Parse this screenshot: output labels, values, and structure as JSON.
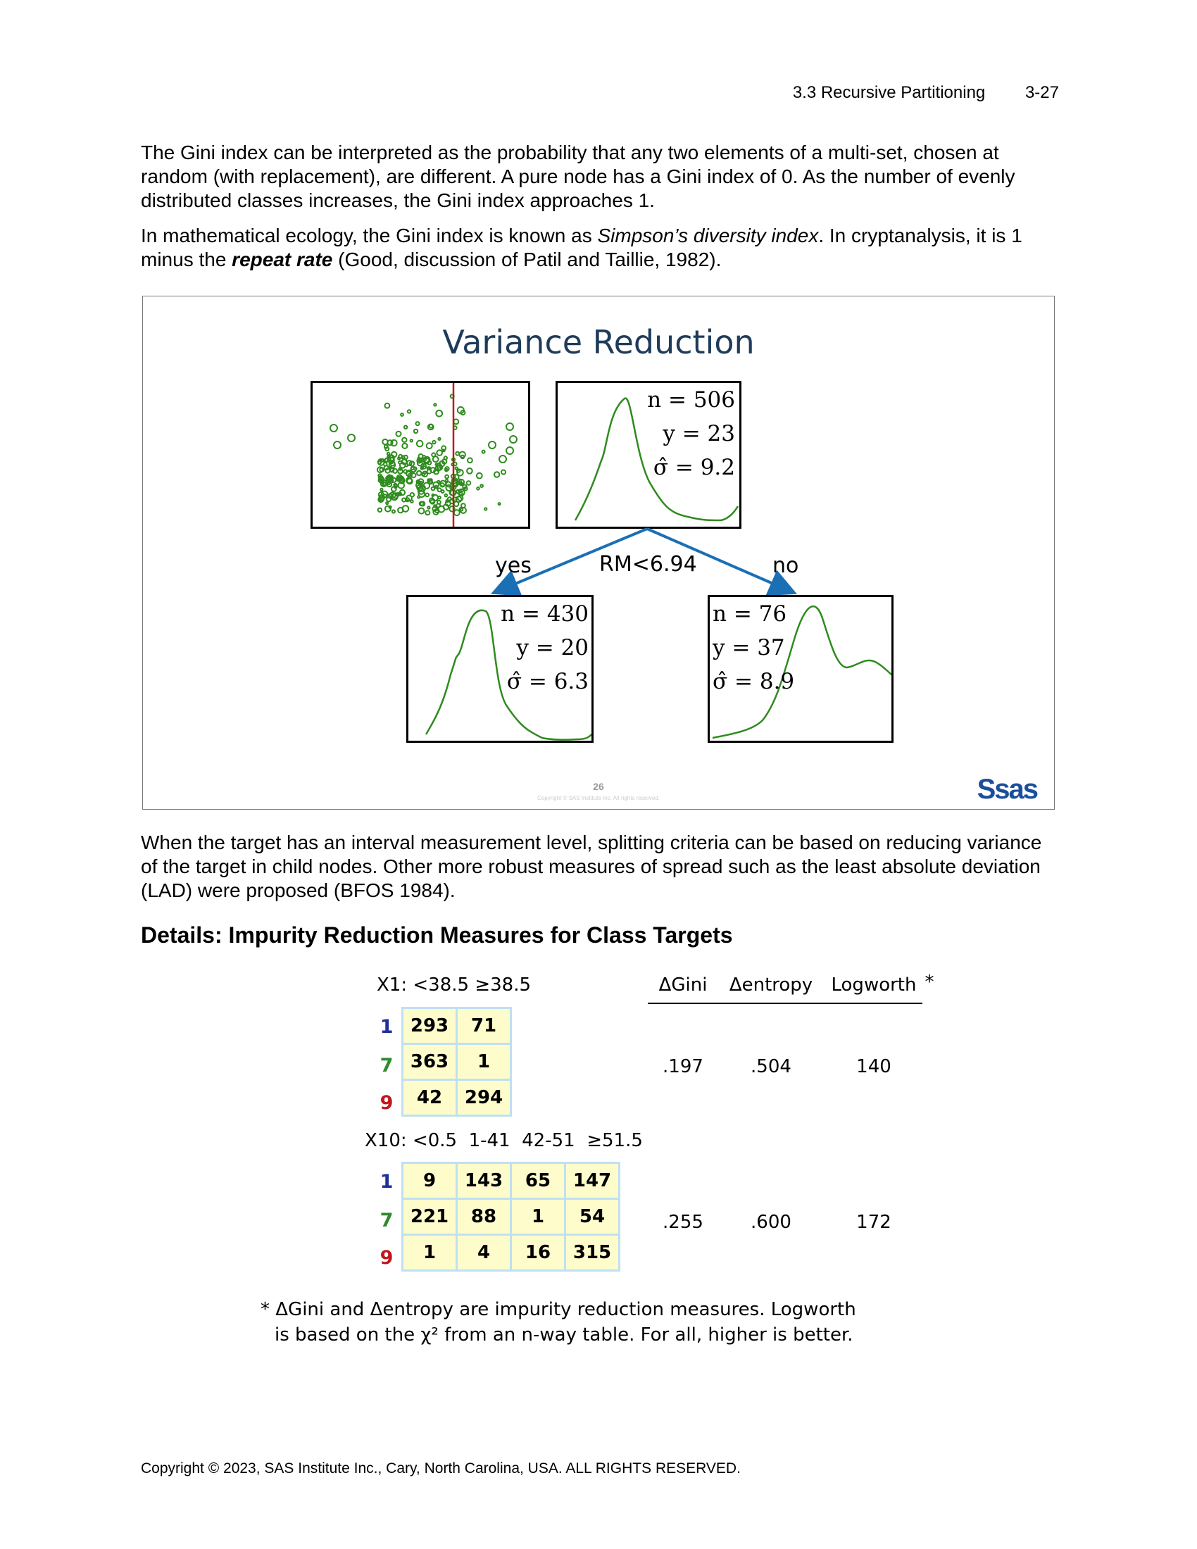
{
  "header": {
    "section": "3.3 Recursive Partitioning",
    "page": "3-27"
  },
  "para1": "The Gini index can be interpreted as the probability that any two elements of a multi-set, chosen at random (with replacement), are different. A pure node has a Gini index of 0. As the number of evenly distributed classes increases, the Gini index approaches 1.",
  "para2": {
    "a": "In mathematical ecology, the Gini index is known as ",
    "b": "Simpson’s diversity index",
    "c": ". In cryptanalysis, it is 1 minus the ",
    "d": "repeat rate",
    "e": " (Good, discussion of Patil and Taillie, 1982)."
  },
  "slide": {
    "title": "Variance Reduction",
    "root": {
      "n": "n = 506",
      "ybar": "y = 23",
      "sigma": "σ̂ = 9.2"
    },
    "left": {
      "n": "n = 430",
      "ybar": "y = 20",
      "sigma": "σ̂ = 6.3"
    },
    "right": {
      "n": "n = 76",
      "ybar": "y = 37",
      "sigma": "σ̂ = 8.9"
    },
    "yes": "yes",
    "split": "RM<6.94",
    "no": "no",
    "number": "26",
    "copyright": "Copyright © SAS Institute Inc. All rights reserved.",
    "logo": "Ssas"
  },
  "para3": "When the target has an interval measurement level, splitting criteria can be based on reducing variance of the target in child nodes. Other more robust measures of spread such as the least absolute deviation (LAD) were proposed (BFOS 1984).",
  "heading": "Details: Impurity Reduction Measures for Class Targets",
  "table": {
    "headers": {
      "gini": "ΔGini",
      "entropy": "Δentropy",
      "logworth": "Logworth",
      "star": "*"
    },
    "row_colors": {
      "1": "#1f2f9a",
      "7": "#2e8b2e",
      "9": "#c0161c"
    },
    "x1": {
      "label": "X1: <38.5 ≥38.5",
      "rows": [
        {
          "class": "1",
          "cells": [
            "293",
            "71"
          ]
        },
        {
          "class": "7",
          "cells": [
            "363",
            "1"
          ]
        },
        {
          "class": "9",
          "cells": [
            "42",
            "294"
          ]
        }
      ],
      "gini": ".197",
      "entropy": ".504",
      "logworth": "140"
    },
    "x10": {
      "label": "X10: <0.5  1-41  42-51  ≥51.5",
      "rows": [
        {
          "class": "1",
          "cells": [
            "9",
            "143",
            "65",
            "147"
          ]
        },
        {
          "class": "7",
          "cells": [
            "221",
            "88",
            "1",
            "54"
          ]
        },
        {
          "class": "9",
          "cells": [
            "1",
            "4",
            "16",
            "315"
          ]
        }
      ],
      "gini": ".255",
      "entropy": ".600",
      "logworth": "172"
    },
    "footnote1": "* ΔGini and Δentropy are impurity reduction measures. Logworth",
    "footnote2": "is based on the χ² from an n-way table. For all, higher is better."
  },
  "footer": "Copyright © 2023, SAS Institute Inc., Cary, North Carolina, USA. ALL RIGHTS RESERVED."
}
